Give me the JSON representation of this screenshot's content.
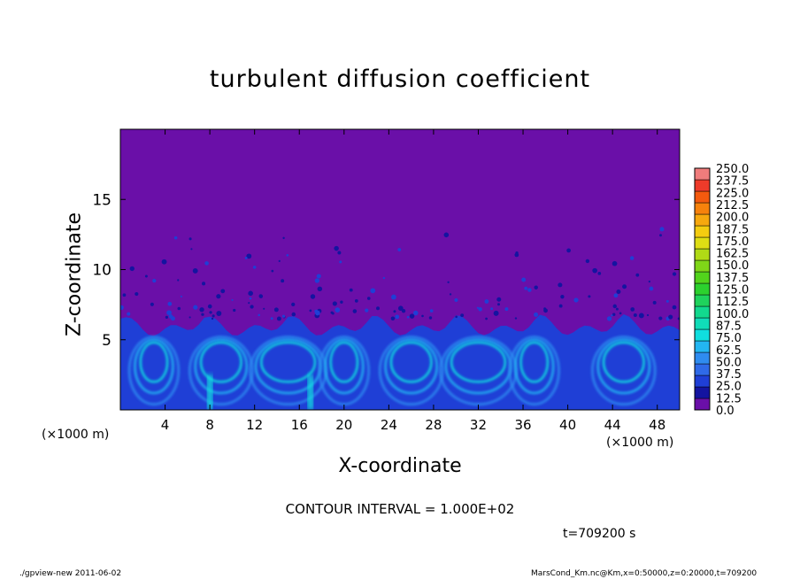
{
  "title": "turbulent diffusion coefficient",
  "xlabel": "X-coordinate",
  "ylabel": "Z-coordinate",
  "x_unit_left": "(×1000 m)",
  "x_unit_right": "(×1000 m)",
  "contour_interval": "CONTOUR INTERVAL = 1.000E+02",
  "time_label": "t=709200  s",
  "footer_left": "./gpview-new   2011-06-02",
  "footer_right": "MarsCond_Km.nc@Km,x=0:50000,z=0:20000,t=709200",
  "chart_data": {
    "type": "heatmap",
    "title": "turbulent diffusion coefficient",
    "xlabel": "X-coordinate",
    "ylabel": "Z-coordinate",
    "xlim": [
      0,
      50
    ],
    "ylim": [
      0,
      20
    ],
    "x_ticks": [
      4,
      8,
      12,
      16,
      20,
      24,
      28,
      32,
      36,
      40,
      44,
      48
    ],
    "y_ticks": [
      5,
      10,
      15
    ],
    "colorbar": {
      "levels": [
        "0.0",
        "12.5",
        "25.0",
        "37.5",
        "50.0",
        "62.5",
        "75.0",
        "87.5",
        "100.0",
        "112.5",
        "125.0",
        "137.5",
        "150.0",
        "162.5",
        "175.0",
        "187.5",
        "200.0",
        "212.5",
        "225.0",
        "237.5",
        "250.0"
      ],
      "colors": [
        "#6a0fa8",
        "#1414a0",
        "#1f3fd6",
        "#2f6ae8",
        "#2f8cf0",
        "#23b6f2",
        "#10dedf",
        "#10dcb8",
        "#12d98e",
        "#1fd35c",
        "#2cd12e",
        "#52d41c",
        "#7fd618",
        "#b0da16",
        "#dede14",
        "#f4cc10",
        "#f7a80e",
        "#f7820c",
        "#f45a0e",
        "#ee3b2a",
        "#f07c7c"
      ]
    },
    "background_value": 0.0,
    "turbulent_layer_top_approx": 6.5,
    "description_regions": [
      {
        "x_range": [
          0,
          50
        ],
        "z_range": [
          0,
          6.5
        ],
        "value_range": [
          25,
          62.5
        ]
      }
    ]
  }
}
